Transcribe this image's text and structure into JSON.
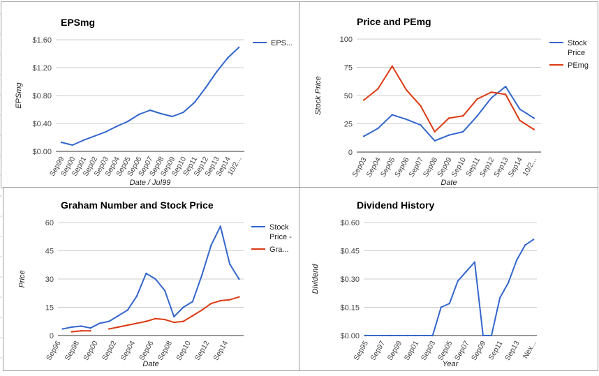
{
  "chart_data": [
    {
      "type": "line",
      "title": "EPSmg",
      "xlabel": "Date / Jul99",
      "ylabel": "EPSmg",
      "yticks": [
        "$0.00",
        "$0.40",
        "$0.80",
        "$1.20",
        "$1.60"
      ],
      "ylim": [
        0,
        1.6
      ],
      "categories": [
        "Sep99",
        "Sep00",
        "Sep01",
        "Sep02",
        "Sep03",
        "Sep04",
        "Sep05",
        "Sep06",
        "Sep07",
        "Sep08",
        "Sep09",
        "Sep10",
        "Sep11",
        "Sep12",
        "Sep13",
        "Sep14",
        "10/2..."
      ],
      "series": [
        {
          "name": "EPS...",
          "color": "#3366cc",
          "values": [
            0.13,
            0.09,
            0.16,
            0.22,
            0.28,
            0.36,
            0.43,
            0.53,
            0.59,
            0.54,
            0.5,
            0.56,
            0.7,
            0.91,
            1.14,
            1.34,
            1.49
          ]
        }
      ],
      "grid": true,
      "legend": "right"
    },
    {
      "type": "line",
      "title": "Price and PEmg",
      "xlabel": "Date",
      "ylabel": "Stock Price",
      "yticks": [
        "0",
        "25",
        "50",
        "75",
        "100"
      ],
      "ylim": [
        0,
        100
      ],
      "categories": [
        "Sep03",
        "Sep04",
        "Sep05",
        "Sep06",
        "Sep07",
        "Sep08",
        "Sep09",
        "Sep10",
        "Sep11",
        "Sep12",
        "Sep13",
        "Sep14",
        "10/2..."
      ],
      "series": [
        {
          "name": "Stock Price",
          "color": "#3366cc",
          "values": [
            14,
            21,
            33,
            29,
            24,
            10,
            15,
            18,
            32,
            48,
            58,
            38,
            30
          ]
        },
        {
          "name": "PEmg",
          "color": "#dc3912",
          "values": [
            46,
            56,
            76,
            55,
            41,
            18,
            30,
            32,
            47,
            53,
            51,
            28,
            20
          ]
        }
      ],
      "grid": true,
      "legend": "right"
    },
    {
      "type": "line",
      "title": "Graham Number and Stock Price",
      "xlabel": "Date",
      "ylabel": "Price",
      "yticks": [
        "0",
        "15",
        "30",
        "45",
        "60"
      ],
      "ylim": [
        0,
        60
      ],
      "xrange": [
        1996,
        2016
      ],
      "categories": [
        "Sep96",
        "Sep98",
        "Sep00",
        "Sep02",
        "Sep04",
        "Sep06",
        "Sep08",
        "Sep10",
        "Sep12",
        "Sep14"
      ],
      "series": [
        {
          "name": "Stock Price -",
          "color": "#3366cc",
          "x": [
            1996.5,
            1997.5,
            1998.5,
            1999.5,
            2000.5,
            2001.5,
            2002.5,
            2003.5,
            2004.5,
            2005.5,
            2006.5,
            2007.5,
            2008.5,
            2009.5,
            2010.5,
            2011.5,
            2012.5,
            2013.5,
            2014.5,
            2015.5
          ],
          "values": [
            3.5,
            4.5,
            5,
            4,
            6.5,
            7.5,
            10.5,
            13.5,
            21,
            33,
            30,
            24,
            10,
            15,
            18,
            32,
            48,
            58,
            38,
            30
          ]
        },
        {
          "name": "Gra...",
          "color": "#dc3912",
          "segments": [
            {
              "x": [
                1997.5,
                1998.5,
                1999.5
              ],
              "values": [
                2,
                2.5,
                2.5
              ]
            },
            {
              "x": [
                2001.5,
                2002.5,
                2003.5,
                2004.5,
                2005.5,
                2006.5,
                2007.5,
                2008.5,
                2009.5,
                2010.5,
                2011.5,
                2012.5,
                2013.5,
                2014.5,
                2015.5
              ],
              "values": [
                3.5,
                4.5,
                5.5,
                6.5,
                7.5,
                9,
                8.5,
                7,
                7.5,
                10.5,
                13.5,
                17,
                18.5,
                19,
                20.5
              ]
            }
          ]
        }
      ],
      "grid": true,
      "legend": "right"
    },
    {
      "type": "line",
      "title": "Dividend History",
      "xlabel": "Year",
      "ylabel": "Dividend",
      "yticks": [
        "$0.00",
        "$0.15",
        "$0.30",
        "$0.45",
        "$0.60"
      ],
      "ylim": [
        0,
        0.6
      ],
      "categories": [
        "Sep95",
        "Sep97",
        "Sep99",
        "Sep01",
        "Sep03",
        "Sep05",
        "Sep07",
        "Sep09",
        "Sep11",
        "Sep13",
        "Nex..."
      ],
      "series": [
        {
          "name": "Dividend",
          "color": "#3366cc",
          "x": [
            1995,
            1996,
            1997,
            1998,
            1999,
            2000,
            2001,
            2002,
            2003,
            2004,
            2005,
            2006,
            2007,
            2008,
            2009,
            2010,
            2011,
            2012,
            2013,
            2014,
            2015
          ],
          "values": [
            0,
            0,
            0,
            0,
            0,
            0,
            0,
            0,
            0,
            0.15,
            0.17,
            0.29,
            0.34,
            0.39,
            0,
            0,
            0.2,
            0.28,
            0.4,
            0.48,
            0.51
          ]
        }
      ],
      "grid": true,
      "legend": "none"
    }
  ]
}
